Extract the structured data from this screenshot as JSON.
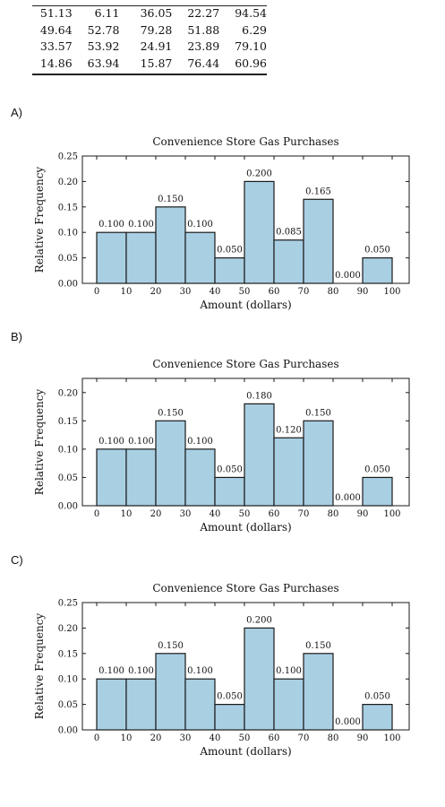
{
  "table": {
    "rows": [
      [
        "51.13",
        "6.11",
        "36.05",
        "22.27",
        "94.54"
      ],
      [
        "49.64",
        "52.78",
        "79.28",
        "51.88",
        "6.29"
      ],
      [
        "33.57",
        "53.92",
        "24.91",
        "23.89",
        "79.10"
      ],
      [
        "14.86",
        "63.94",
        "15.87",
        "76.44",
        "60.96"
      ]
    ]
  },
  "options": [
    {
      "label": "A)"
    },
    {
      "label": "B)"
    },
    {
      "label": "C)"
    }
  ],
  "colors": {
    "bar_fill": "#a9cfe3",
    "bar_stroke": "#1a1a1a",
    "axis": "#1a1a1a"
  },
  "chart_data": [
    {
      "type": "bar",
      "title": "Convenience Store Gas Purchases",
      "xlabel": "Amount (dollars)",
      "ylabel": "Relative Frequency",
      "bin_edges": [
        0,
        10,
        20,
        30,
        40,
        50,
        60,
        70,
        80,
        90,
        100
      ],
      "values": [
        0.1,
        0.1,
        0.15,
        0.1,
        0.05,
        0.2,
        0.085,
        0.165,
        0.0,
        0.05
      ],
      "value_labels": [
        "0.100",
        "0.100",
        "0.150",
        "0.100",
        "0.050",
        "0.200",
        "0.085",
        "0.165",
        "0.000",
        "0.050"
      ],
      "ylim": [
        0,
        0.25
      ],
      "yticks": [
        "0.00",
        "0.05",
        "0.10",
        "0.15",
        "0.20",
        "0.25"
      ],
      "xticks": [
        "0",
        "10",
        "20",
        "30",
        "40",
        "50",
        "60",
        "70",
        "80",
        "90",
        "100"
      ],
      "grid": false
    },
    {
      "type": "bar",
      "title": "Convenience Store Gas Purchases",
      "xlabel": "Amount (dollars)",
      "ylabel": "Relative Frequency",
      "bin_edges": [
        0,
        10,
        20,
        30,
        40,
        50,
        60,
        70,
        80,
        90,
        100
      ],
      "values": [
        0.1,
        0.1,
        0.15,
        0.1,
        0.05,
        0.18,
        0.12,
        0.15,
        0.0,
        0.05
      ],
      "value_labels": [
        "0.100",
        "0.100",
        "0.150",
        "0.100",
        "0.050",
        "0.180",
        "0.120",
        "0.150",
        "0.000",
        "0.050"
      ],
      "ylim": [
        0,
        0.225
      ],
      "yticks": [
        "0.00",
        "0.05",
        "0.10",
        "0.15",
        "0.20"
      ],
      "xticks": [
        "0",
        "10",
        "20",
        "30",
        "40",
        "50",
        "60",
        "70",
        "80",
        "90",
        "100"
      ],
      "grid": false
    },
    {
      "type": "bar",
      "title": "Convenience Store Gas Purchases",
      "xlabel": "Amount (dollars)",
      "ylabel": "Relative Frequency",
      "bin_edges": [
        0,
        10,
        20,
        30,
        40,
        50,
        60,
        70,
        80,
        90,
        100
      ],
      "values": [
        0.1,
        0.1,
        0.15,
        0.1,
        0.05,
        0.2,
        0.1,
        0.15,
        0.0,
        0.05
      ],
      "value_labels": [
        "0.100",
        "0.100",
        "0.150",
        "0.100",
        "0.050",
        "0.200",
        "0.100",
        "0.150",
        "0.000",
        "0.050"
      ],
      "ylim": [
        0,
        0.25
      ],
      "yticks": [
        "0.00",
        "0.05",
        "0.10",
        "0.15",
        "0.20",
        "0.25"
      ],
      "xticks": [
        "0",
        "10",
        "20",
        "30",
        "40",
        "50",
        "60",
        "70",
        "80",
        "90",
        "100"
      ],
      "grid": false
    }
  ]
}
